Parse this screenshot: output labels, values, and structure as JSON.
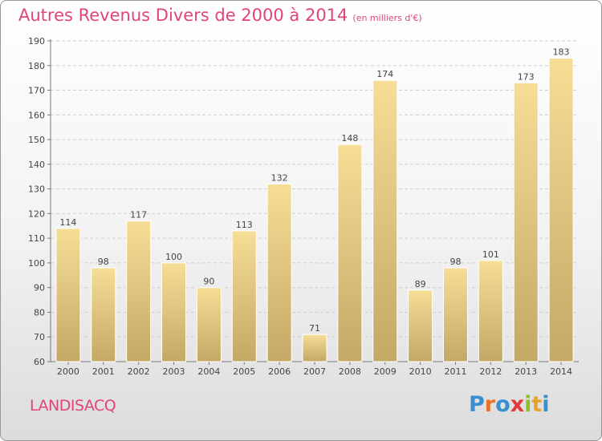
{
  "header": {
    "title": "Autres Revenus Divers de 2000 à 2014",
    "unit": "(en milliers d'€)"
  },
  "footer": {
    "commune": "LANDISACQ",
    "logo": {
      "letters": [
        "P",
        "r",
        "o",
        "x",
        "i",
        "t",
        "i"
      ],
      "colors": [
        "#3a8fd0",
        "#e8722a",
        "#3a8fd0",
        "#e03a3a",
        "#8cbf2a",
        "#e8a32a",
        "#3a8fd0"
      ]
    }
  },
  "colors": {
    "title": "#e0447e",
    "bar_light": "#f6de97",
    "bar_dark": "#c4a865",
    "grid": "#cfcfcf"
  },
  "chart_data": {
    "type": "bar",
    "categories": [
      "2000",
      "2001",
      "2002",
      "2003",
      "2004",
      "2005",
      "2006",
      "2007",
      "2008",
      "2009",
      "2010",
      "2011",
      "2012",
      "2013",
      "2014"
    ],
    "values": [
      114,
      98,
      117,
      100,
      90,
      113,
      132,
      71,
      148,
      174,
      89,
      98,
      101,
      173,
      183
    ],
    "ylim": [
      60,
      190
    ],
    "yticks": [
      60,
      70,
      80,
      90,
      100,
      110,
      120,
      130,
      140,
      150,
      160,
      170,
      180,
      190
    ],
    "grid": true,
    "data_labels": true
  }
}
